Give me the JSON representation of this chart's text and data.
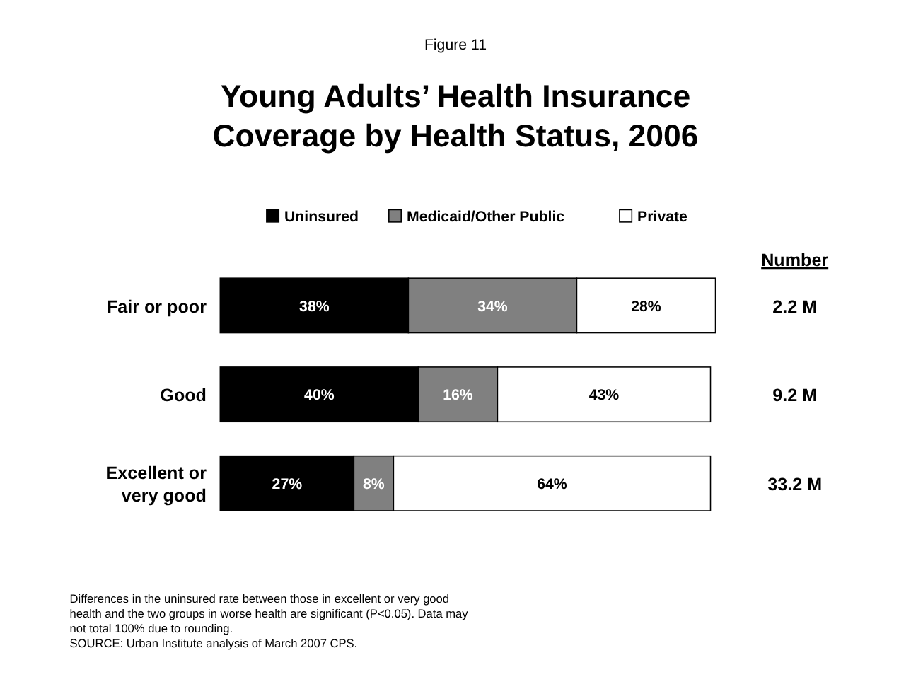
{
  "chart_data": {
    "type": "bar",
    "orientation": "horizontal",
    "stacked": true,
    "subtitle": "Figure 11",
    "title": "Young Adults’ Health Insurance Coverage by Health Status, 2006",
    "categories": [
      "Fair or poor",
      "Good",
      "Excellent or very good"
    ],
    "series": [
      {
        "name": "Uninsured",
        "color": "#000000",
        "values": [
          38,
          40,
          27
        ],
        "value_labels": [
          "38%",
          "40%",
          "27%"
        ]
      },
      {
        "name": "Medicaid/Other Public",
        "color": "#808080",
        "values": [
          34,
          16,
          8
        ],
        "value_labels": [
          "34%",
          "16%",
          "8%"
        ]
      },
      {
        "name": "Private",
        "color": "#ffffff",
        "values": [
          28,
          43,
          64
        ],
        "value_labels": [
          "28%",
          "43%",
          "64%"
        ]
      }
    ],
    "legend": "top",
    "annotations": [
      "Number",
      "2.2 M",
      "9.2 M",
      "33.2 M",
      "Differences in the uninsured rate between those in excellent or very good health and the two groups in worse health are significant (P<0.05).  Data may not total 100% due to rounding.",
      "SOURCE: Urban Institute analysis of March 2007 CPS."
    ]
  }
}
